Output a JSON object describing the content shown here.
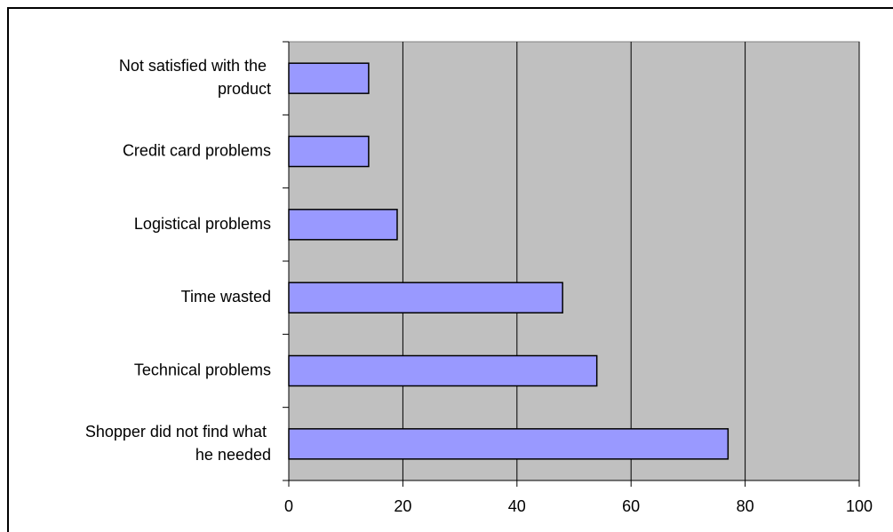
{
  "chart_data": {
    "type": "bar",
    "orientation": "horizontal",
    "categories": [
      "Shopper did not find what he needed",
      "Technical problems",
      "Time wasted",
      "Logistical problems",
      "Credit card problems",
      "Not satisfied with the product"
    ],
    "values": [
      77,
      54,
      48,
      19,
      14,
      14
    ],
    "color": "#9999ff",
    "plot_background": "#c0c0c0",
    "xlim": [
      0,
      100
    ],
    "xticks": [
      0,
      20,
      40,
      60,
      80,
      100
    ],
    "grid": true
  }
}
